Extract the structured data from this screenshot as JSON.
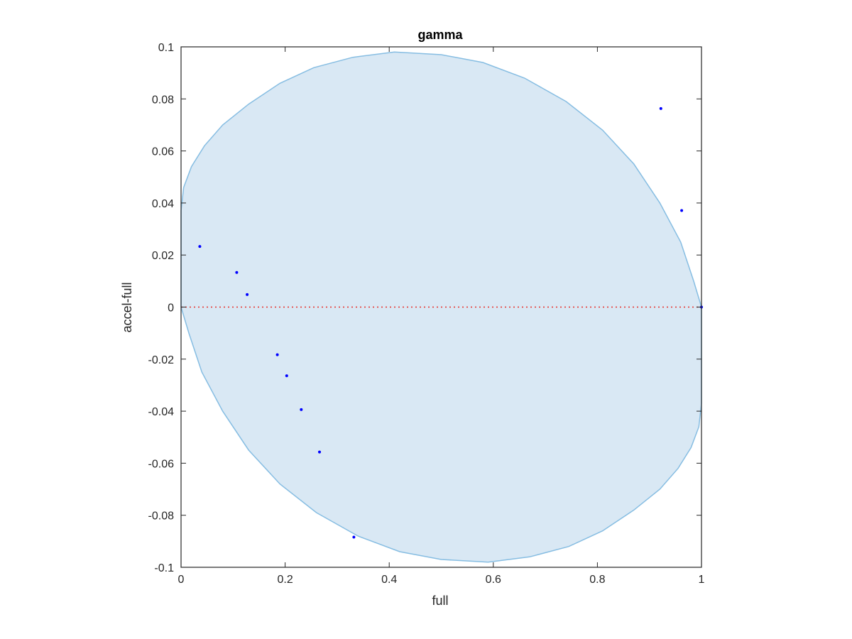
{
  "chart_data": {
    "type": "scatter",
    "title": "gamma",
    "xlabel": "full",
    "ylabel": "accel-full",
    "xlim": [
      0,
      1
    ],
    "ylim": [
      -0.1,
      0.1
    ],
    "x_ticks": [
      0,
      0.2,
      0.4,
      0.6,
      0.8,
      1
    ],
    "x_tick_labels": [
      "0",
      "0.2",
      "0.4",
      "0.6",
      "0.8",
      "1"
    ],
    "y_ticks": [
      -0.1,
      -0.08,
      -0.06,
      -0.04,
      -0.02,
      0,
      0.02,
      0.04,
      0.06,
      0.08,
      0.1
    ],
    "y_tick_labels": [
      "-0.1",
      "-0.08",
      "-0.06",
      "-0.04",
      "-0.02",
      "0",
      "0.02",
      "0.04",
      "0.06",
      "0.08",
      "0.1"
    ],
    "grid": false,
    "reference_line": {
      "y": 0,
      "style": "dotted",
      "color": "#e8312a"
    },
    "region": {
      "fill": "#d9e8f4",
      "edge": "#86bde2",
      "boundary": [
        [
          0.0,
          0.037
        ],
        [
          0.005,
          0.046
        ],
        [
          0.02,
          0.054
        ],
        [
          0.045,
          0.062
        ],
        [
          0.08,
          0.07
        ],
        [
          0.13,
          0.078
        ],
        [
          0.19,
          0.086
        ],
        [
          0.255,
          0.092
        ],
        [
          0.33,
          0.096
        ],
        [
          0.41,
          0.098
        ],
        [
          0.5,
          0.097
        ],
        [
          0.58,
          0.094
        ],
        [
          0.66,
          0.088
        ],
        [
          0.74,
          0.079
        ],
        [
          0.81,
          0.068
        ],
        [
          0.87,
          0.055
        ],
        [
          0.92,
          0.04
        ],
        [
          0.96,
          0.025
        ],
        [
          0.985,
          0.01
        ],
        [
          1.0,
          0.0
        ],
        [
          1.0,
          -0.037
        ],
        [
          0.995,
          -0.046
        ],
        [
          0.98,
          -0.054
        ],
        [
          0.955,
          -0.062
        ],
        [
          0.92,
          -0.07
        ],
        [
          0.87,
          -0.078
        ],
        [
          0.81,
          -0.086
        ],
        [
          0.745,
          -0.092
        ],
        [
          0.67,
          -0.096
        ],
        [
          0.59,
          -0.098
        ],
        [
          0.5,
          -0.097
        ],
        [
          0.42,
          -0.094
        ],
        [
          0.34,
          -0.088
        ],
        [
          0.26,
          -0.079
        ],
        [
          0.19,
          -0.068
        ],
        [
          0.13,
          -0.055
        ],
        [
          0.08,
          -0.04
        ],
        [
          0.04,
          -0.025
        ],
        [
          0.015,
          -0.01
        ],
        [
          0.0,
          0.0
        ]
      ]
    },
    "series": [
      {
        "color": "#0000ff",
        "points": [
          [
            0.036,
            0.0233
          ],
          [
            0.107,
            0.0133
          ],
          [
            0.127,
            0.0048
          ],
          [
            0.185,
            -0.0183
          ],
          [
            0.203,
            -0.0264
          ],
          [
            0.231,
            -0.0394
          ],
          [
            0.266,
            -0.0557
          ],
          [
            0.332,
            -0.0884
          ],
          [
            0.922,
            0.0763
          ],
          [
            0.962,
            0.0371
          ],
          [
            1.0,
            0.0
          ]
        ]
      }
    ]
  }
}
